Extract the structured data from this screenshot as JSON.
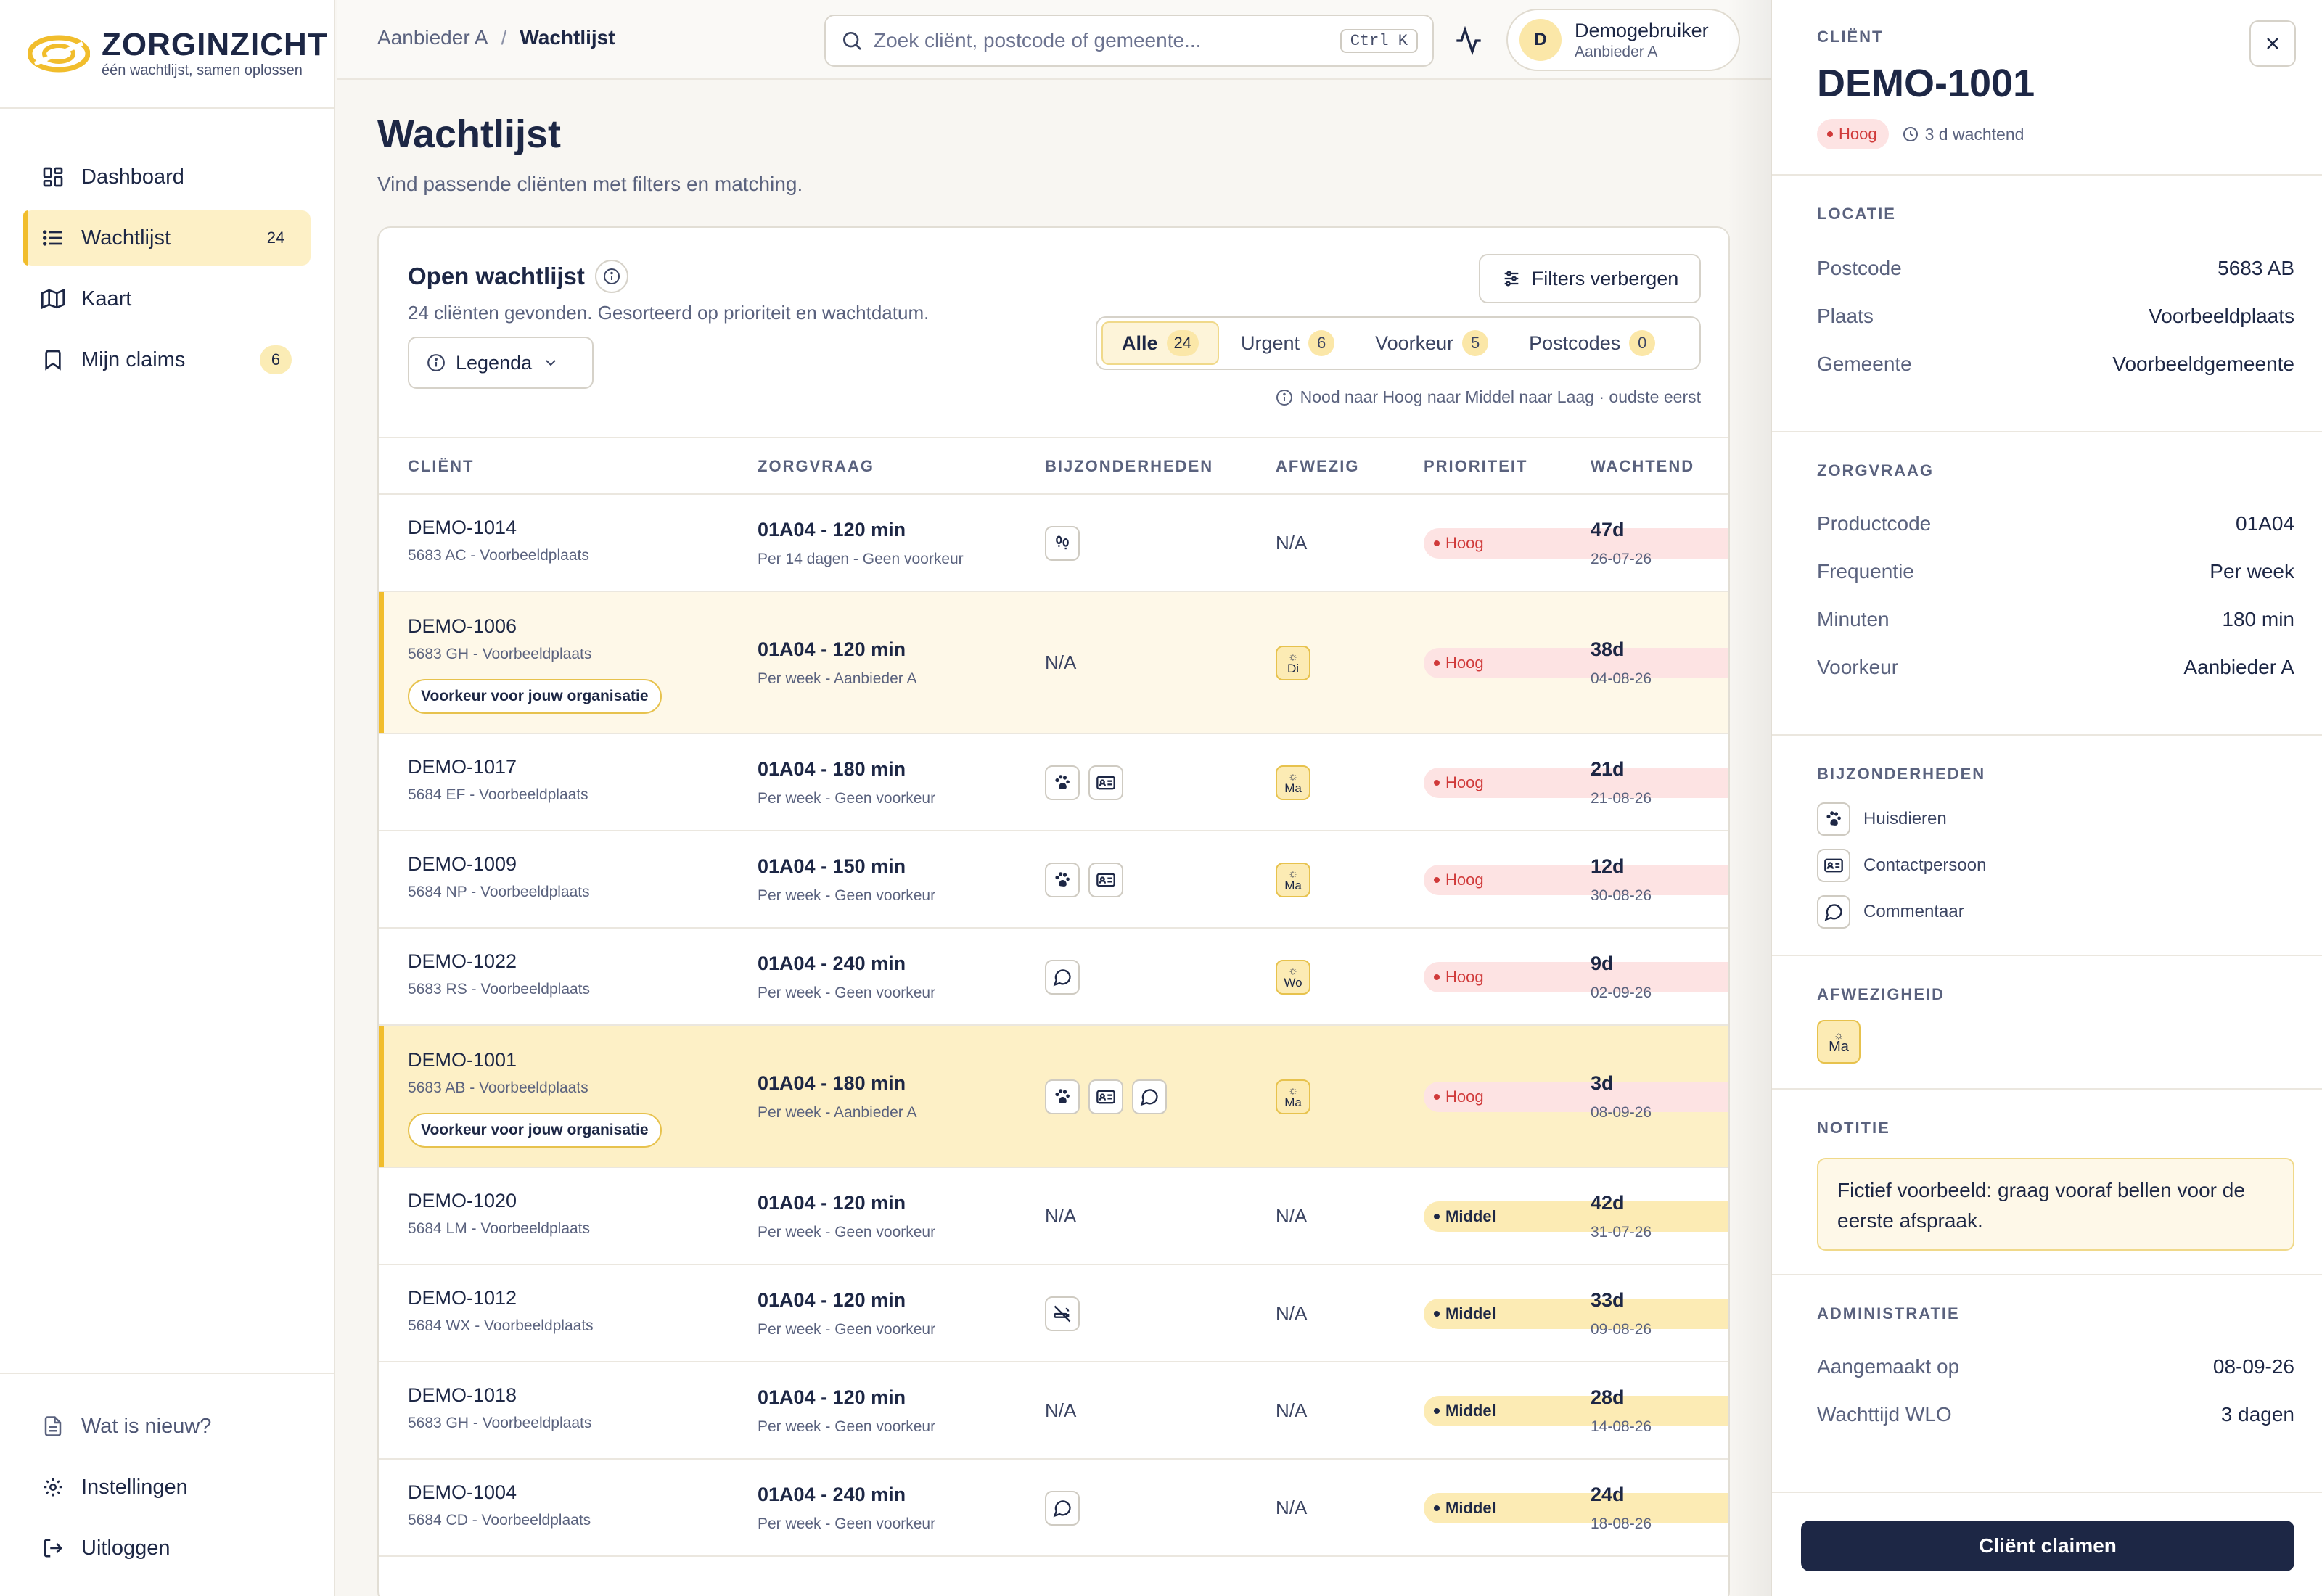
{
  "app": {
    "brand": "ZORGINZICHT",
    "tagline": "één wachtlijst, samen oplossen"
  },
  "nav": {
    "items": [
      {
        "label": "Dashboard",
        "icon": "dashboard-icon"
      },
      {
        "label": "Wachtlijst",
        "icon": "list-icon",
        "badge": "24",
        "active": true
      },
      {
        "label": "Kaart",
        "icon": "map-icon"
      },
      {
        "label": "Mijn claims",
        "icon": "bookmark-icon",
        "badge": "6"
      }
    ],
    "bottom": [
      {
        "label": "Wat is nieuw?",
        "icon": "document-icon"
      },
      {
        "label": "Instellingen",
        "icon": "gear-icon"
      },
      {
        "label": "Uitloggen",
        "icon": "logout-icon"
      }
    ]
  },
  "topbar": {
    "breadcrumb": [
      "Aanbieder A",
      "Wachtlijst"
    ],
    "search_placeholder": "Zoek cliënt, postcode of gemeente...",
    "search_shortcut": "Ctrl K",
    "user": {
      "initial": "D",
      "name": "Demogebruiker",
      "org": "Aanbieder A"
    }
  },
  "page": {
    "title": "Wachtlijst",
    "subtitle": "Vind passende cliënten met filters en matching."
  },
  "card": {
    "title": "Open wachtlijst",
    "summary": "24 cliënten gevonden. Gesorteerd op prioriteit en wachtdatum.",
    "legend_label": "Legenda",
    "filter_label": "Filters verbergen",
    "segments": [
      {
        "label": "Alle",
        "count": "24",
        "active": true
      },
      {
        "label": "Urgent",
        "count": "6"
      },
      {
        "label": "Voorkeur",
        "count": "5"
      },
      {
        "label": "Postcodes",
        "count": "0"
      }
    ],
    "sort_note": "Nood naar Hoog naar Middel naar Laag · oudste eerst"
  },
  "table": {
    "headers": [
      "CLIËNT",
      "ZORGVRAAG",
      "BIJZONDERHEDEN",
      "AFWEZIG",
      "PRIORITEIT",
      "WACHTEND"
    ],
    "pref_label": "Voorkeur voor jouw organisatie",
    "rows": [
      {
        "id": "DEMO-1014",
        "loc": "5683 AC - Voorbeeldplaats",
        "zv": "01A04 - 120 min",
        "zv2": "Per 14 dagen - Geen voorkeur",
        "bij": [
          "footprints-icon"
        ],
        "afwezig": "N/A",
        "prio": "Hoog",
        "wait": "47d",
        "date": "26-07-26"
      },
      {
        "id": "DEMO-1006",
        "loc": "5683 GH - Voorbeeldplaats",
        "zv": "01A04 - 120 min",
        "zv2": "Per week - Aanbieder A",
        "bij": [],
        "bij_na": "N/A",
        "afwezig_badge": "Di",
        "prio": "Hoog",
        "wait": "38d",
        "date": "04-08-26",
        "pref": true
      },
      {
        "id": "DEMO-1017",
        "loc": "5684 EF - Voorbeeldplaats",
        "zv": "01A04 - 180 min",
        "zv2": "Per week - Geen voorkeur",
        "bij": [
          "paw-icon",
          "contact-card-icon"
        ],
        "afwezig_badge": "Ma",
        "prio": "Hoog",
        "wait": "21d",
        "date": "21-08-26"
      },
      {
        "id": "DEMO-1009",
        "loc": "5684 NP - Voorbeeldplaats",
        "zv": "01A04 - 150 min",
        "zv2": "Per week - Geen voorkeur",
        "bij": [
          "paw-icon",
          "contact-card-icon"
        ],
        "afwezig_badge": "Ma",
        "prio": "Hoog",
        "wait": "12d",
        "date": "30-08-26"
      },
      {
        "id": "DEMO-1022",
        "loc": "5683 RS - Voorbeeldplaats",
        "zv": "01A04 - 240 min",
        "zv2": "Per week - Geen voorkeur",
        "bij": [
          "comment-icon"
        ],
        "afwezig_badge": "Wo",
        "prio": "Hoog",
        "wait": "9d",
        "date": "02-09-26"
      },
      {
        "id": "DEMO-1001",
        "loc": "5683 AB - Voorbeeldplaats",
        "zv": "01A04 - 180 min",
        "zv2": "Per week - Aanbieder A",
        "bij": [
          "paw-icon",
          "contact-card-icon",
          "comment-icon"
        ],
        "afwezig_badge": "Ma",
        "prio": "Hoog",
        "wait": "3d",
        "date": "08-09-26",
        "pref": true,
        "selected": true
      },
      {
        "id": "DEMO-1020",
        "loc": "5684 LM - Voorbeeldplaats",
        "zv": "01A04 - 120 min",
        "zv2": "Per week - Geen voorkeur",
        "bij": [],
        "bij_na": "N/A",
        "afwezig": "N/A",
        "prio": "Middel",
        "wait": "42d",
        "date": "31-07-26"
      },
      {
        "id": "DEMO-1012",
        "loc": "5684 WX - Voorbeeldplaats",
        "zv": "01A04 - 120 min",
        "zv2": "Per week - Geen voorkeur",
        "bij": [
          "no-smoking-icon"
        ],
        "afwezig": "N/A",
        "prio": "Middel",
        "wait": "33d",
        "date": "09-08-26"
      },
      {
        "id": "DEMO-1018",
        "loc": "5683 GH - Voorbeeldplaats",
        "zv": "01A04 - 120 min",
        "zv2": "Per week - Geen voorkeur",
        "bij": [],
        "bij_na": "N/A",
        "afwezig": "N/A",
        "prio": "Middel",
        "wait": "28d",
        "date": "14-08-26"
      },
      {
        "id": "DEMO-1004",
        "loc": "5684 CD - Voorbeeldplaats",
        "zv": "01A04 - 240 min",
        "zv2": "Per week - Geen voorkeur",
        "bij": [
          "comment-icon"
        ],
        "afwezig": "N/A",
        "prio": "Middel",
        "wait": "24d",
        "date": "18-08-26"
      }
    ]
  },
  "detail": {
    "label": "CLIËNT",
    "title": "DEMO-1001",
    "prio": "Hoog",
    "wait": "3 d wachtend",
    "locatie": {
      "label": "LOCATIE",
      "rows": [
        {
          "k": "Postcode",
          "v": "5683 AB"
        },
        {
          "k": "Plaats",
          "v": "Voorbeeldplaats"
        },
        {
          "k": "Gemeente",
          "v": "Voorbeeldgemeente"
        }
      ]
    },
    "zorgvraag": {
      "label": "ZORGVRAAG",
      "rows": [
        {
          "k": "Productcode",
          "v": "01A04"
        },
        {
          "k": "Frequentie",
          "v": "Per week"
        },
        {
          "k": "Minuten",
          "v": "180 min"
        },
        {
          "k": "Voorkeur",
          "v": "Aanbieder A"
        }
      ]
    },
    "bijzonderheden": {
      "label": "BIJZONDERHEDEN",
      "items": [
        {
          "label": "Huisdieren",
          "icon": "paw-icon"
        },
        {
          "label": "Contactpersoon",
          "icon": "contact-card-icon"
        },
        {
          "label": "Commentaar",
          "icon": "comment-icon"
        }
      ]
    },
    "afwezigheid": {
      "label": "AFWEZIGHEID",
      "badge": "Ma"
    },
    "notitie": {
      "label": "NOTITIE",
      "text": "Fictief voorbeeld: graag vooraf bellen voor de eerste afspraak."
    },
    "administratie": {
      "label": "ADMINISTRATIE",
      "rows": [
        {
          "k": "Aangemaakt op",
          "v": "08-09-26"
        },
        {
          "k": "Wachttijd WLO",
          "v": "3 dagen"
        }
      ]
    },
    "claim_label": "Cliënt claimen"
  },
  "colors": {
    "accent": "#f1bd2c",
    "navy": "#1d2745",
    "danger": "#d03a3a",
    "pref_bg": "#fef8e8",
    "selected_bg": "#fdf0c6"
  }
}
